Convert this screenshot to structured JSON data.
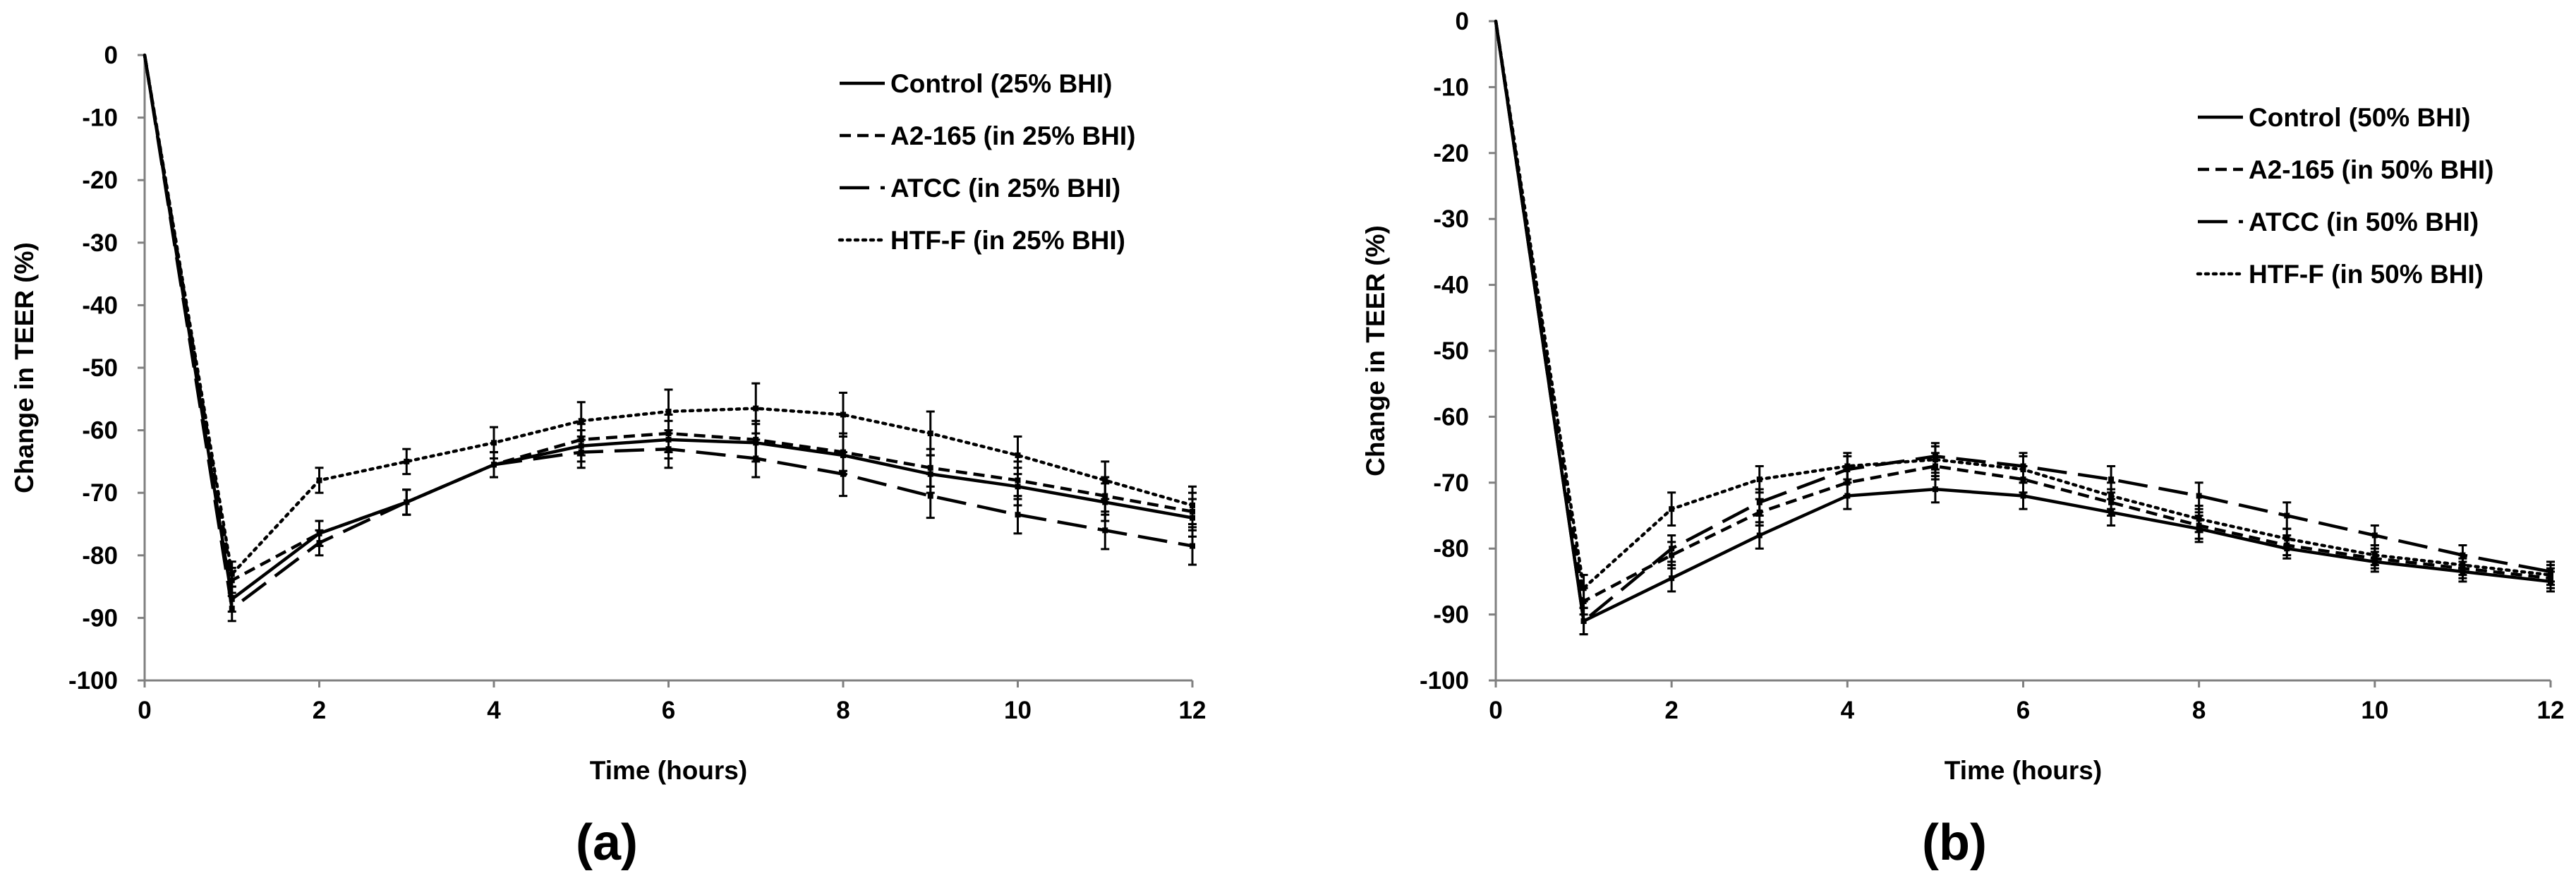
{
  "chart_data": [
    {
      "type": "line",
      "panel_label": "(a)",
      "xlabel": "Time (hours)",
      "ylabel": "Change in TEER (%)",
      "xlim": [
        0,
        12
      ],
      "ylim": [
        -100,
        0
      ],
      "x_ticks": [
        0,
        2,
        4,
        6,
        8,
        10,
        12
      ],
      "y_ticks": [
        0,
        -10,
        -20,
        -30,
        -40,
        -50,
        -60,
        -70,
        -80,
        -90,
        -100
      ],
      "legend_position": "top-right",
      "grid": false,
      "x": [
        0,
        1,
        2,
        3,
        4,
        5,
        6,
        7,
        8,
        9,
        10,
        11,
        12
      ],
      "series": [
        {
          "name": "Control (25% BHI)",
          "style": "solid",
          "values": [
            0,
            -87,
            -76.5,
            -71.5,
            -65.5,
            -62.5,
            -61.5,
            -62,
            -64,
            -67,
            -69,
            -71.5,
            -74
          ],
          "errors": [
            0,
            2,
            2,
            2,
            2,
            2.5,
            3,
            3,
            3,
            3,
            3,
            3,
            3
          ]
        },
        {
          "name": "A2-165 (in 25% BHI)",
          "style": "short-dash",
          "values": [
            0,
            -84,
            -76.5,
            -71.5,
            -65.5,
            -61.5,
            -60.5,
            -61.5,
            -63.5,
            -66,
            -68,
            -70.5,
            -73
          ],
          "errors": [
            0,
            2,
            2,
            2,
            2,
            2.5,
            3,
            3,
            3,
            3,
            3,
            3,
            3
          ]
        },
        {
          "name": "ATCC (in 25% BHI)",
          "style": "long-dash",
          "values": [
            0,
            -88.5,
            -78,
            -71.5,
            -65.5,
            -63.5,
            -63,
            -64.5,
            -67,
            -70.5,
            -73.5,
            -76,
            -78.5
          ],
          "errors": [
            0,
            2,
            2,
            2,
            2,
            2.5,
            3,
            3,
            3.5,
            3.5,
            3,
            3,
            3
          ]
        },
        {
          "name": "HTF-F (in 25% BHI)",
          "style": "dotted",
          "values": [
            0,
            -83,
            -68,
            -65,
            -62,
            -58.5,
            -57,
            -56.5,
            -57.5,
            -60.5,
            -64,
            -68,
            -72
          ],
          "errors": [
            0,
            2,
            2,
            2,
            2.5,
            3,
            3.5,
            4,
            3.5,
            3.5,
            3,
            3,
            3
          ]
        }
      ]
    },
    {
      "type": "line",
      "panel_label": "(b)",
      "xlabel": "Time (hours)",
      "ylabel": "Change in TEER (%)",
      "xlim": [
        0,
        12
      ],
      "ylim": [
        -100,
        0
      ],
      "x_ticks": [
        0,
        2,
        4,
        6,
        8,
        10,
        12
      ],
      "y_ticks": [
        0,
        -10,
        -20,
        -30,
        -40,
        -50,
        -60,
        -70,
        -80,
        -90,
        -100
      ],
      "legend_position": "top-right",
      "grid": false,
      "x": [
        0,
        1,
        2,
        3,
        4,
        5,
        6,
        7,
        8,
        9,
        10,
        11,
        12
      ],
      "series": [
        {
          "name": "Control (50% BHI)",
          "style": "solid",
          "values": [
            0,
            -91,
            -84.5,
            -78,
            -72,
            -71,
            -72,
            -74.5,
            -77,
            -80,
            -82,
            -83.5,
            -85
          ],
          "errors": [
            0,
            2,
            2,
            2,
            2,
            2,
            2,
            2,
            2,
            1.5,
            1.5,
            1.5,
            1.5
          ]
        },
        {
          "name": "A2-165 (in 50% BHI)",
          "style": "short-dash",
          "values": [
            0,
            -88,
            -81,
            -74.5,
            -70,
            -67.5,
            -69.5,
            -73,
            -76.5,
            -79.5,
            -81.5,
            -83,
            -84.5
          ],
          "errors": [
            0,
            2,
            2,
            2,
            2,
            2,
            2,
            2,
            2,
            1.5,
            1.5,
            1.5,
            1.5
          ]
        },
        {
          "name": "ATCC (in 50% BHI)",
          "style": "long-dash",
          "values": [
            0,
            -91,
            -80,
            -73,
            -68,
            -66,
            -67.5,
            -69.5,
            -72,
            -75,
            -78,
            -81,
            -83.5
          ],
          "errors": [
            0,
            2,
            2,
            2,
            2,
            2,
            2,
            2,
            2,
            2,
            1.5,
            1.5,
            1.5
          ]
        },
        {
          "name": "HTF-F (in 50% BHI)",
          "style": "dotted",
          "values": [
            0,
            -86,
            -74,
            -69.5,
            -67.5,
            -66.5,
            -68,
            -72,
            -75.5,
            -78.5,
            -81,
            -82.5,
            -84
          ],
          "errors": [
            0,
            2,
            2.5,
            2,
            2,
            2,
            2,
            2,
            2,
            1.5,
            1.5,
            1.5,
            1.5
          ]
        }
      ]
    }
  ]
}
